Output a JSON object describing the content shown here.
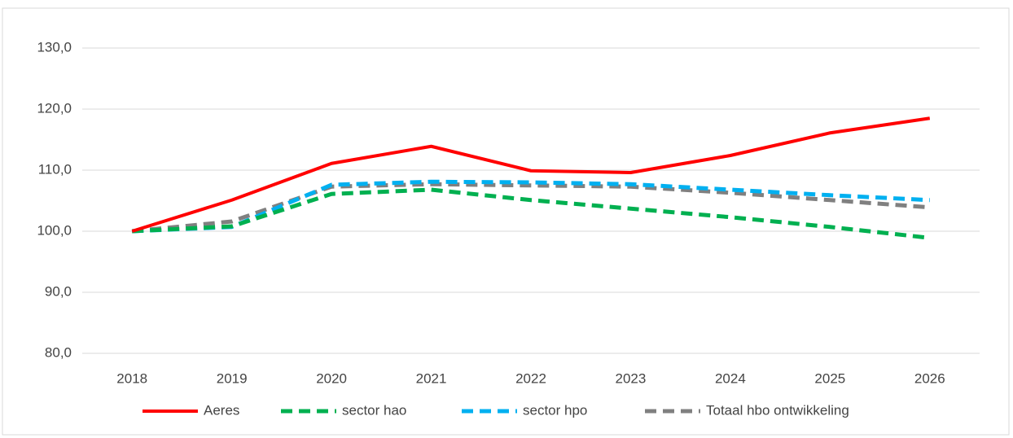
{
  "chart_data": {
    "type": "line",
    "categories": [
      "2018",
      "2019",
      "2020",
      "2021",
      "2022",
      "2023",
      "2024",
      "2025",
      "2026"
    ],
    "series": [
      {
        "name": "Aeres",
        "color": "#ff0000",
        "dashed": false,
        "values": [
          100,
          105.1,
          111.1,
          113.9,
          109.9,
          109.6,
          112.4,
          116.1,
          118.5
        ]
      },
      {
        "name": "sector hao",
        "color": "#00b050",
        "dashed": true,
        "values": [
          100,
          100.8,
          106.1,
          106.8,
          105.1,
          103.7,
          102.3,
          100.7,
          98.9
        ]
      },
      {
        "name": "sector hpo",
        "color": "#00b0f0",
        "dashed": true,
        "values": [
          100,
          100.7,
          107.6,
          108.1,
          108.0,
          107.7,
          106.8,
          105.9,
          105.1
        ]
      },
      {
        "name": "Totaal hbo ontwikkeling",
        "color": "#808080",
        "dashed": true,
        "values": [
          100,
          101.6,
          107.3,
          107.7,
          107.5,
          107.3,
          106.3,
          105.1,
          103.9
        ]
      }
    ],
    "ylim": [
      80,
      130
    ],
    "yticks": [
      {
        "value": 80,
        "label": "80,0"
      },
      {
        "value": 90,
        "label": "90,0"
      },
      {
        "value": 100,
        "label": "100,0"
      },
      {
        "value": 110,
        "label": "110,0"
      },
      {
        "value": 120,
        "label": "120,0"
      },
      {
        "value": 130,
        "label": "130,0"
      }
    ],
    "grid": true,
    "legend": "bottom"
  }
}
